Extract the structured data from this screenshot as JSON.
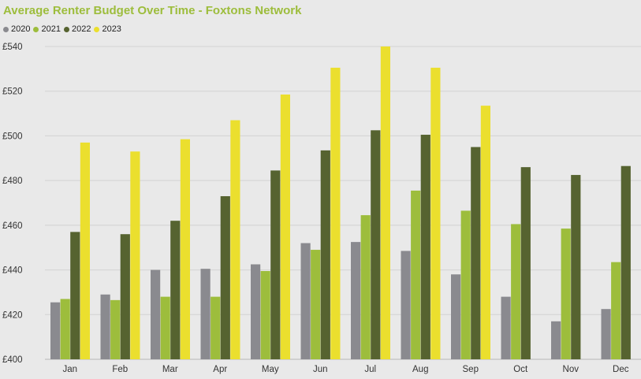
{
  "chart_data": {
    "type": "bar",
    "title": "Average Renter Budget Over Time - Foxtons Network",
    "xlabel": "",
    "ylabel": "",
    "categories": [
      "Jan",
      "Feb",
      "Mar",
      "Apr",
      "May",
      "Jun",
      "Jul",
      "Aug",
      "Sep",
      "Oct",
      "Nov",
      "Dec"
    ],
    "ylim": [
      400,
      540
    ],
    "yticks": [
      400,
      420,
      440,
      460,
      480,
      500,
      520,
      540
    ],
    "ytick_labels": [
      "£400",
      "£420",
      "£440",
      "£460",
      "£480",
      "£500",
      "£520",
      "£540"
    ],
    "grid": true,
    "legend_position": "top-left",
    "series": [
      {
        "name": "2020",
        "color": "#8a8a8f",
        "values": [
          425.5,
          429,
          440,
          440.5,
          442.5,
          452,
          452.5,
          448.5,
          438,
          428,
          417,
          422.5
        ]
      },
      {
        "name": "2021",
        "color": "#9dbd3c",
        "values": [
          427,
          426.5,
          428,
          428,
          439.5,
          449,
          464.5,
          475.5,
          466.5,
          460.5,
          458.5,
          443.5
        ]
      },
      {
        "name": "2022",
        "color": "#566330",
        "values": [
          457,
          456,
          462,
          473,
          484.5,
          493.5,
          502.5,
          500.5,
          495,
          486,
          482.5,
          486.5
        ]
      },
      {
        "name": "2023",
        "color": "#ebdf2e",
        "values": [
          497,
          493,
          498.5,
          507,
          518.5,
          530.5,
          540,
          530.5,
          513.5,
          null,
          null,
          null
        ]
      }
    ]
  }
}
